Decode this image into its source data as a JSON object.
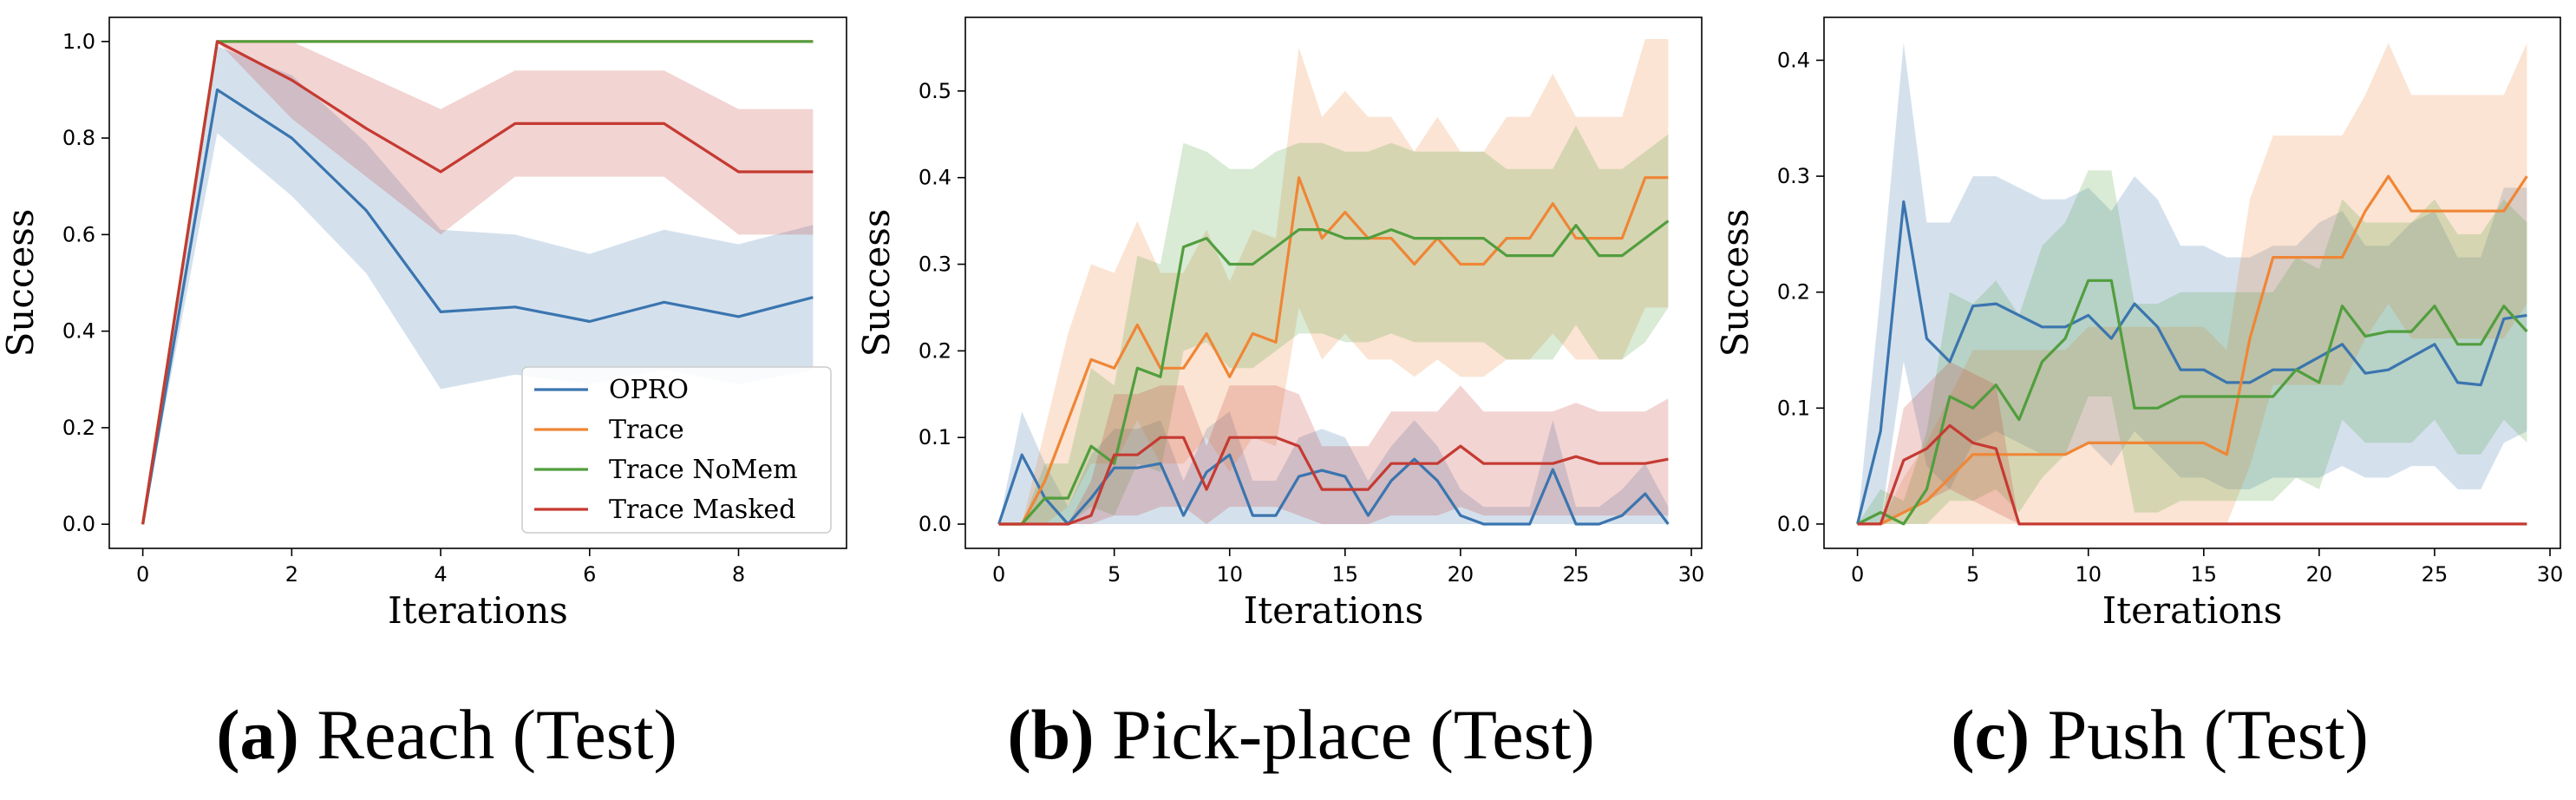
{
  "colors": {
    "OPRO": "#3b75af",
    "Trace": "#ef8636",
    "Trace NoMem": "#519e3e",
    "Trace Masked": "#c53a32"
  },
  "captions": [
    {
      "letter": "(a)",
      "text": " Reach (Test)"
    },
    {
      "letter": "(b)",
      "text": " Pick-place (Test)"
    },
    {
      "letter": "(c)",
      "text": " Push (Test)"
    }
  ],
  "chart_data": [
    {
      "type": "line",
      "title": "Reach (Test)",
      "xlabel": "Iterations",
      "ylabel": "Success",
      "xlim": [
        -0.45,
        9.45
      ],
      "ylim": [
        -0.05,
        1.05
      ],
      "xticks": [
        0,
        2,
        4,
        6,
        8
      ],
      "yticks": [
        0.0,
        0.2,
        0.4,
        0.6,
        0.8,
        1.0
      ],
      "ytick_labels": [
        "0.0",
        "0.2",
        "0.4",
        "0.6",
        "0.8",
        "1.0"
      ],
      "legend": {
        "position": "lower-right",
        "entries": [
          "OPRO",
          "Trace",
          "Trace NoMem",
          "Trace Masked"
        ]
      },
      "x": [
        0,
        1,
        2,
        3,
        4,
        5,
        6,
        7,
        8,
        9
      ],
      "series": [
        {
          "name": "OPRO",
          "values": [
            0,
            0.9,
            0.8,
            0.65,
            0.44,
            0.45,
            0.42,
            0.46,
            0.43,
            0.47
          ],
          "lower": [
            0,
            0.81,
            0.68,
            0.52,
            0.28,
            0.31,
            0.29,
            0.32,
            0.29,
            0.32
          ],
          "upper": [
            0,
            0.99,
            0.93,
            0.79,
            0.61,
            0.6,
            0.56,
            0.61,
            0.58,
            0.62
          ]
        },
        {
          "name": "Trace",
          "values": [
            0,
            1.0,
            1.0,
            1.0,
            1.0,
            1.0,
            1.0,
            1.0,
            1.0,
            1.0
          ]
        },
        {
          "name": "Trace NoMem",
          "values": [
            0,
            1.0,
            1.0,
            1.0,
            1.0,
            1.0,
            1.0,
            1.0,
            1.0,
            1.0
          ]
        },
        {
          "name": "Trace Masked",
          "values": [
            0,
            1.0,
            0.92,
            0.82,
            0.73,
            0.83,
            0.83,
            0.83,
            0.73,
            0.73
          ],
          "lower": [
            0,
            1.0,
            0.84,
            0.72,
            0.6,
            0.72,
            0.72,
            0.72,
            0.6,
            0.6
          ],
          "upper": [
            0,
            1.0,
            1.0,
            0.93,
            0.86,
            0.94,
            0.94,
            0.94,
            0.86,
            0.86
          ]
        }
      ]
    },
    {
      "type": "line",
      "title": "Pick-place (Test)",
      "xlabel": "Iterations",
      "ylabel": "Success",
      "xlim": [
        -1.45,
        30.45
      ],
      "ylim": [
        -0.028,
        0.585
      ],
      "xticks": [
        0,
        5,
        10,
        15,
        20,
        25,
        30
      ],
      "yticks": [
        0.0,
        0.1,
        0.2,
        0.3,
        0.4,
        0.5
      ],
      "ytick_labels": [
        "0.0",
        "0.1",
        "0.2",
        "0.3",
        "0.4",
        "0.5"
      ],
      "x": [
        0,
        1,
        2,
        3,
        4,
        5,
        6,
        7,
        8,
        9,
        10,
        11,
        12,
        13,
        14,
        15,
        16,
        17,
        18,
        19,
        20,
        21,
        22,
        23,
        24,
        25,
        26,
        27,
        28,
        29
      ],
      "series": [
        {
          "name": "OPRO",
          "values": [
            0,
            0.08,
            0.03,
            0,
            0.03,
            0.065,
            0.065,
            0.07,
            0.01,
            0.06,
            0.08,
            0.01,
            0.01,
            0.055,
            0.062,
            0.055,
            0.01,
            0.05,
            0.075,
            0.05,
            0.01,
            0,
            0,
            0,
            0.063,
            0,
            0,
            0.01,
            0.035,
            0
          ],
          "lower": [
            0,
            0,
            0,
            0,
            0,
            0,
            0,
            0,
            0,
            0,
            0,
            0,
            0,
            0,
            0,
            0,
            0,
            0,
            0,
            0,
            0,
            0,
            0,
            0,
            0,
            0,
            0,
            0,
            0,
            0
          ],
          "upper": [
            0,
            0.13,
            0.07,
            0.02,
            0.08,
            0.11,
            0.11,
            0.12,
            0.05,
            0.11,
            0.13,
            0.05,
            0.05,
            0.1,
            0.11,
            0.1,
            0.05,
            0.09,
            0.12,
            0.09,
            0.04,
            0.02,
            0.02,
            0.02,
            0.12,
            0.02,
            0.02,
            0.04,
            0.07,
            0.02
          ]
        },
        {
          "name": "Trace",
          "values": [
            0,
            0,
            0.05,
            0.12,
            0.19,
            0.18,
            0.23,
            0.18,
            0.18,
            0.22,
            0.17,
            0.22,
            0.21,
            0.4,
            0.33,
            0.36,
            0.33,
            0.33,
            0.3,
            0.33,
            0.3,
            0.3,
            0.33,
            0.33,
            0.37,
            0.33,
            0.33,
            0.33,
            0.4,
            0.4
          ],
          "lower": [
            0,
            0,
            0,
            0.02,
            0.07,
            0.07,
            0.12,
            0.07,
            0.07,
            0.1,
            0.06,
            0.1,
            0.09,
            0.25,
            0.19,
            0.22,
            0.19,
            0.19,
            0.17,
            0.19,
            0.17,
            0.17,
            0.19,
            0.19,
            0.22,
            0.19,
            0.19,
            0.19,
            0.25,
            0.25
          ],
          "upper": [
            0,
            0,
            0.11,
            0.22,
            0.3,
            0.29,
            0.35,
            0.29,
            0.29,
            0.34,
            0.28,
            0.34,
            0.33,
            0.55,
            0.47,
            0.5,
            0.47,
            0.47,
            0.43,
            0.47,
            0.43,
            0.43,
            0.47,
            0.47,
            0.52,
            0.47,
            0.47,
            0.47,
            0.56,
            0.56
          ]
        },
        {
          "name": "Trace NoMem",
          "values": [
            0,
            0,
            0.03,
            0.03,
            0.09,
            0.07,
            0.18,
            0.17,
            0.32,
            0.33,
            0.3,
            0.3,
            0.32,
            0.34,
            0.34,
            0.33,
            0.33,
            0.34,
            0.33,
            0.33,
            0.33,
            0.33,
            0.31,
            0.31,
            0.31,
            0.345,
            0.31,
            0.31,
            0.33,
            0.35
          ],
          "lower": [
            0,
            0,
            0,
            0,
            0.02,
            0.01,
            0.07,
            0.06,
            0.2,
            0.21,
            0.18,
            0.18,
            0.2,
            0.22,
            0.22,
            0.21,
            0.21,
            0.22,
            0.21,
            0.21,
            0.21,
            0.21,
            0.19,
            0.19,
            0.19,
            0.23,
            0.19,
            0.19,
            0.21,
            0.25
          ],
          "upper": [
            0,
            0,
            0.07,
            0.07,
            0.18,
            0.16,
            0.31,
            0.3,
            0.44,
            0.43,
            0.41,
            0.41,
            0.43,
            0.44,
            0.44,
            0.43,
            0.43,
            0.44,
            0.43,
            0.43,
            0.43,
            0.43,
            0.41,
            0.41,
            0.41,
            0.46,
            0.41,
            0.41,
            0.43,
            0.45
          ]
        },
        {
          "name": "Trace Masked",
          "values": [
            0,
            0,
            0,
            0,
            0.01,
            0.08,
            0.08,
            0.1,
            0.1,
            0.04,
            0.1,
            0.1,
            0.1,
            0.09,
            0.04,
            0.04,
            0.04,
            0.07,
            0.07,
            0.07,
            0.09,
            0.07,
            0.07,
            0.07,
            0.07,
            0.078,
            0.07,
            0.07,
            0.07,
            0.075
          ],
          "lower": [
            0,
            0,
            0,
            0,
            0,
            0.01,
            0.01,
            0.02,
            0.02,
            0,
            0.02,
            0.02,
            0.02,
            0.01,
            0,
            0,
            0,
            0.01,
            0.01,
            0.01,
            0.02,
            0.01,
            0.01,
            0.01,
            0.01,
            0.01,
            0.01,
            0.01,
            0.01,
            0.01
          ],
          "upper": [
            0,
            0,
            0,
            0,
            0.05,
            0.15,
            0.15,
            0.16,
            0.16,
            0.09,
            0.16,
            0.16,
            0.16,
            0.15,
            0.09,
            0.09,
            0.09,
            0.13,
            0.13,
            0.13,
            0.16,
            0.13,
            0.13,
            0.13,
            0.13,
            0.14,
            0.13,
            0.13,
            0.13,
            0.145
          ]
        }
      ]
    },
    {
      "type": "line",
      "title": "Push (Test)",
      "xlabel": "Iterations",
      "ylabel": "Success",
      "xlim": [
        -1.45,
        30.45
      ],
      "ylim": [
        -0.021,
        0.437
      ],
      "xticks": [
        0,
        5,
        10,
        15,
        20,
        25,
        30
      ],
      "yticks": [
        0.0,
        0.1,
        0.2,
        0.3,
        0.4
      ],
      "ytick_labels": [
        "0.0",
        "0.1",
        "0.2",
        "0.3",
        "0.4"
      ],
      "x": [
        0,
        1,
        2,
        3,
        4,
        5,
        6,
        7,
        8,
        9,
        10,
        11,
        12,
        13,
        14,
        15,
        16,
        17,
        18,
        19,
        20,
        21,
        22,
        23,
        24,
        25,
        26,
        27,
        28,
        29
      ],
      "series": [
        {
          "name": "OPRO",
          "values": [
            0,
            0.08,
            0.278,
            0.16,
            0.14,
            0.188,
            0.19,
            0.18,
            0.17,
            0.17,
            0.18,
            0.16,
            0.19,
            0.17,
            0.133,
            0.133,
            0.122,
            0.122,
            0.133,
            0.133,
            0.144,
            0.155,
            0.13,
            0.133,
            0.144,
            0.155,
            0.122,
            0.12,
            0.177,
            0.18
          ],
          "lower": [
            0,
            0,
            0.14,
            0.05,
            0.03,
            0.07,
            0.08,
            0.07,
            0.06,
            0.06,
            0.07,
            0.05,
            0.08,
            0.06,
            0.04,
            0.04,
            0.03,
            0.03,
            0.04,
            0.04,
            0.04,
            0.05,
            0.04,
            0.04,
            0.05,
            0.05,
            0.03,
            0.03,
            0.07,
            0.08
          ],
          "upper": [
            0,
            0.2,
            0.415,
            0.26,
            0.26,
            0.3,
            0.3,
            0.29,
            0.28,
            0.28,
            0.29,
            0.27,
            0.3,
            0.28,
            0.24,
            0.24,
            0.23,
            0.23,
            0.24,
            0.24,
            0.26,
            0.27,
            0.24,
            0.24,
            0.26,
            0.27,
            0.23,
            0.23,
            0.29,
            0.29
          ]
        },
        {
          "name": "Trace",
          "values": [
            0,
            0,
            0.01,
            0.02,
            0.04,
            0.06,
            0.06,
            0.06,
            0.06,
            0.06,
            0.07,
            0.07,
            0.07,
            0.07,
            0.07,
            0.07,
            0.06,
            0.16,
            0.23,
            0.23,
            0.23,
            0.23,
            0.27,
            0.3,
            0.27,
            0.27,
            0.27,
            0.27,
            0.27,
            0.3
          ],
          "lower": [
            0,
            0,
            0,
            0,
            0,
            0,
            0,
            0,
            0,
            0,
            0,
            0,
            0,
            0,
            0,
            0,
            0,
            0.05,
            0.12,
            0.12,
            0.12,
            0.12,
            0.16,
            0.19,
            0.16,
            0.16,
            0.16,
            0.16,
            0.16,
            0.19
          ],
          "upper": [
            0,
            0,
            0.04,
            0.07,
            0.11,
            0.15,
            0.15,
            0.15,
            0.15,
            0.15,
            0.17,
            0.17,
            0.17,
            0.17,
            0.17,
            0.17,
            0.15,
            0.28,
            0.335,
            0.335,
            0.335,
            0.335,
            0.37,
            0.415,
            0.37,
            0.37,
            0.37,
            0.37,
            0.37,
            0.415
          ]
        },
        {
          "name": "Trace NoMem",
          "values": [
            0,
            0.01,
            0,
            0.03,
            0.11,
            0.1,
            0.12,
            0.09,
            0.14,
            0.16,
            0.21,
            0.21,
            0.1,
            0.1,
            0.11,
            0.11,
            0.11,
            0.11,
            0.11,
            0.133,
            0.122,
            0.188,
            0.162,
            0.166,
            0.166,
            0.188,
            0.155,
            0.155,
            0.188,
            0.166
          ],
          "lower": [
            0,
            0,
            0,
            0,
            0.02,
            0.02,
            0.03,
            0.01,
            0.04,
            0.06,
            0.11,
            0.11,
            0.01,
            0.01,
            0.02,
            0.02,
            0.02,
            0.02,
            0.02,
            0.04,
            0.03,
            0.09,
            0.07,
            0.07,
            0.07,
            0.09,
            0.06,
            0.06,
            0.09,
            0.07
          ],
          "upper": [
            0,
            0.03,
            0.02,
            0.08,
            0.2,
            0.19,
            0.21,
            0.18,
            0.24,
            0.26,
            0.305,
            0.305,
            0.19,
            0.19,
            0.2,
            0.2,
            0.2,
            0.2,
            0.2,
            0.23,
            0.22,
            0.28,
            0.26,
            0.26,
            0.26,
            0.28,
            0.25,
            0.25,
            0.28,
            0.26
          ]
        },
        {
          "name": "Trace Masked",
          "values": [
            0,
            0,
            0.055,
            0.065,
            0.085,
            0.07,
            0.065,
            0,
            0,
            0,
            0,
            0,
            0,
            0,
            0,
            0,
            0,
            0,
            0,
            0,
            0,
            0,
            0,
            0,
            0,
            0,
            0,
            0,
            0,
            0
          ],
          "lower": [
            0,
            0,
            0.01,
            0.02,
            0.03,
            0.02,
            0.01,
            0,
            0,
            0,
            0,
            0,
            0,
            0,
            0,
            0,
            0,
            0,
            0,
            0,
            0,
            0,
            0,
            0,
            0,
            0,
            0,
            0,
            0,
            0
          ],
          "upper": [
            0,
            0,
            0.1,
            0.12,
            0.14,
            0.13,
            0.12,
            0,
            0,
            0,
            0,
            0,
            0,
            0,
            0,
            0,
            0,
            0,
            0,
            0,
            0,
            0,
            0,
            0,
            0,
            0,
            0,
            0,
            0,
            0
          ]
        }
      ]
    }
  ]
}
